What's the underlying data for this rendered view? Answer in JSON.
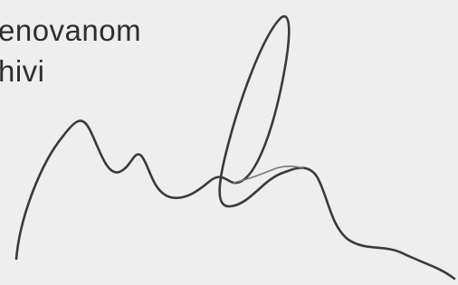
{
  "text": {
    "lines": [
      "enovanom",
      "hivi"
    ]
  }
}
